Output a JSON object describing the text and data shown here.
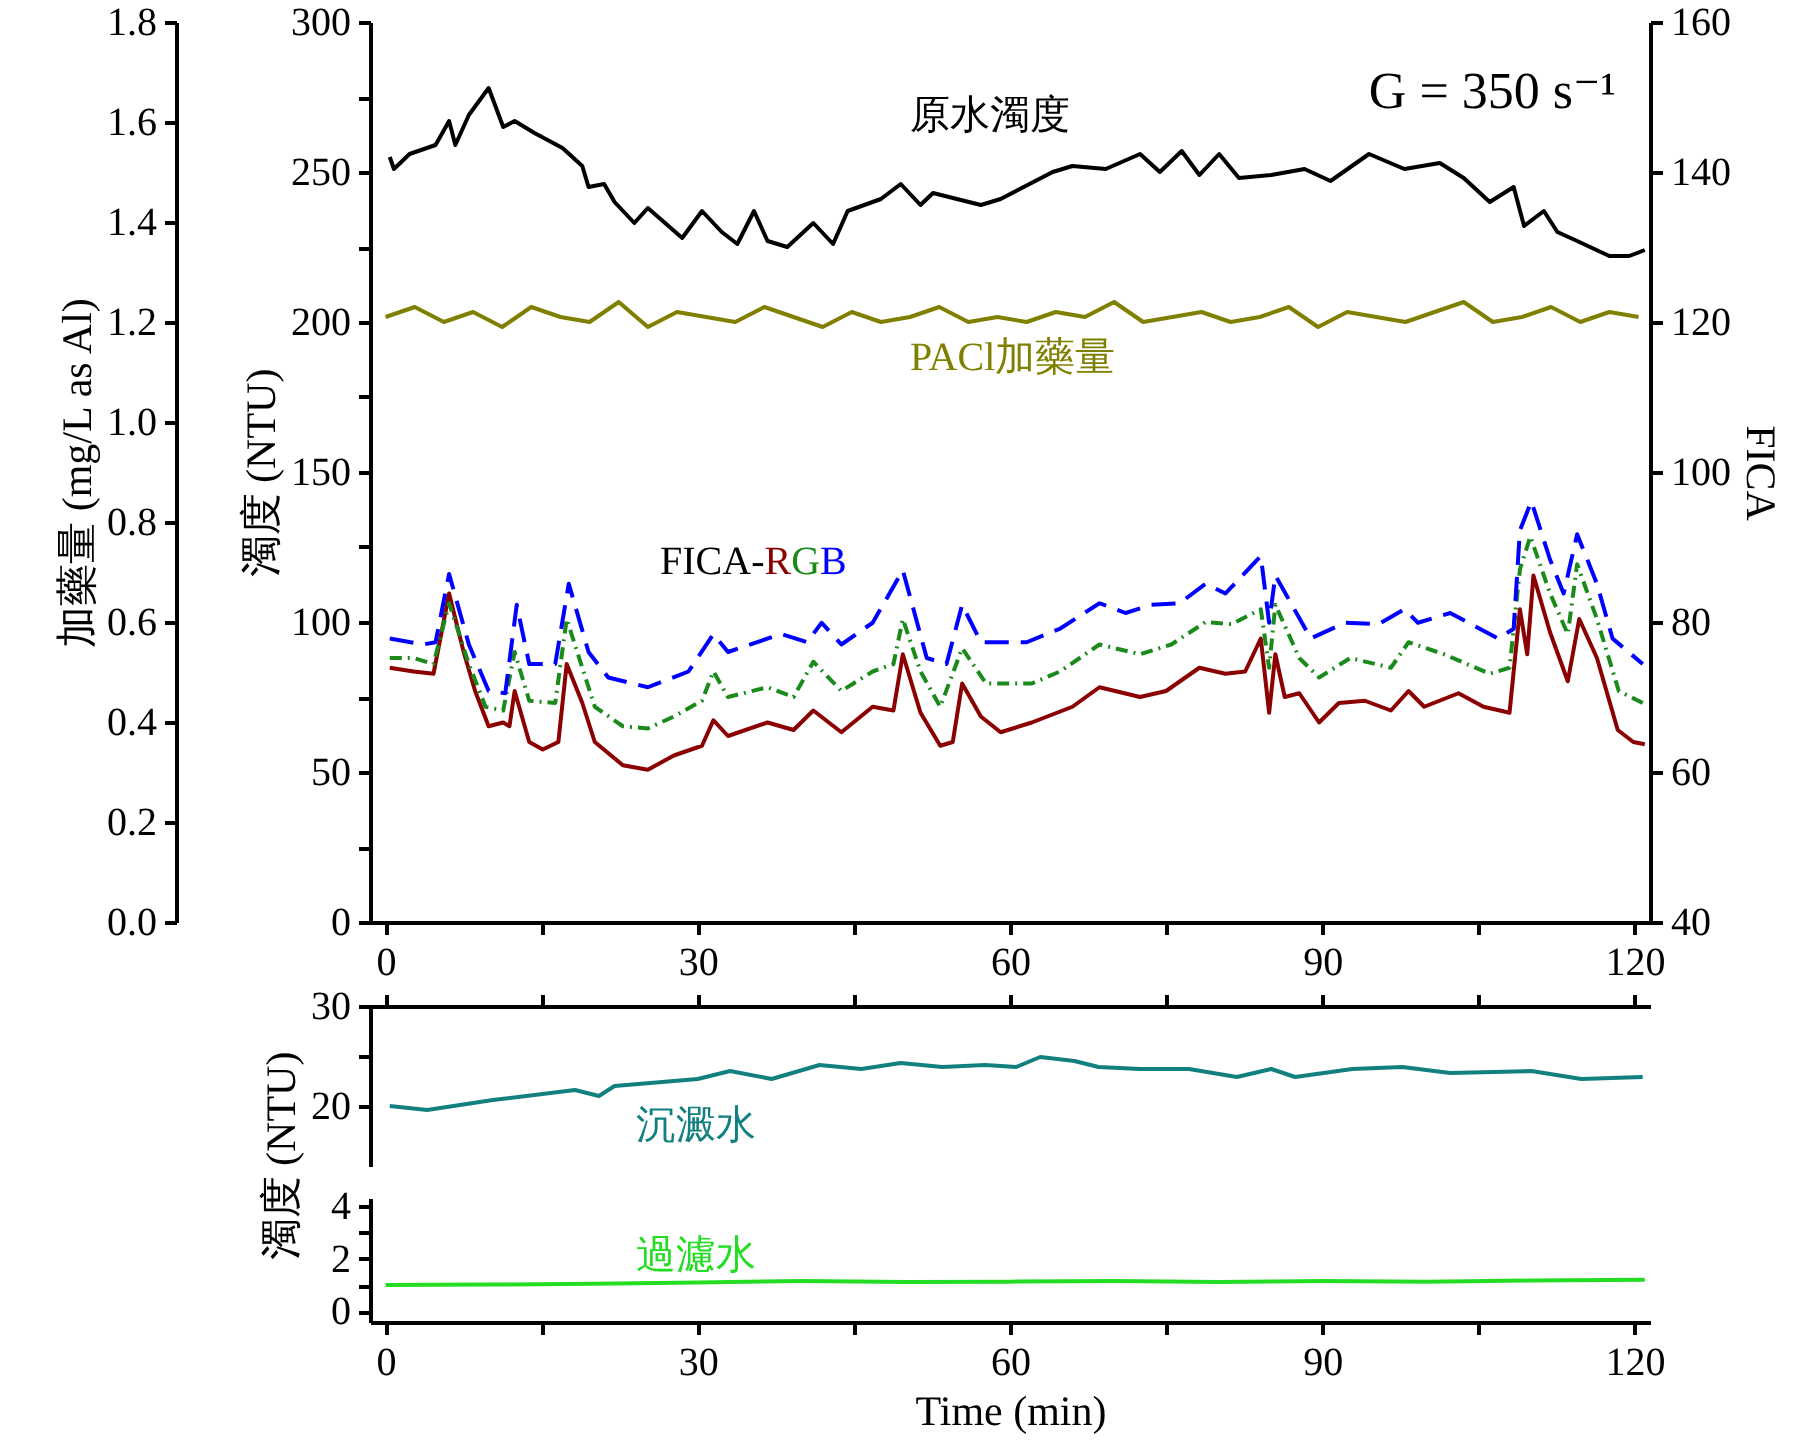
{
  "chart_data": [
    {
      "type": "line",
      "ylabel": "濁度 (NTU)",
      "y2label": "FICA",
      "y3label": "加藥量 (mg/L as Al)",
      "annotations": [
        "G = 350 s⁻¹",
        "FICA-"
      ],
      "xlim": [
        -1.5,
        121.5
      ],
      "xticks": [
        0,
        {
          "value": 15,
          "label": null
        },
        30,
        {
          "value": 45,
          "label": null
        },
        60,
        {
          "value": 75,
          "label": null
        },
        90,
        {
          "value": 105,
          "label": null
        },
        120
      ],
      "ylim": [
        0,
        300
      ],
      "yticks": [
        0,
        {
          "value": 25,
          "label": null
        },
        50,
        {
          "value": 75,
          "label": null
        },
        100,
        {
          "value": 125,
          "label": null
        },
        150,
        {
          "value": 175,
          "label": null
        },
        200,
        {
          "value": 225,
          "label": null
        },
        250,
        {
          "value": 275,
          "label": null
        },
        300
      ],
      "y2lim": [
        40,
        160
      ],
      "y2ticks": [
        40,
        60,
        80,
        100,
        120,
        140,
        160
      ],
      "y3lim": [
        0,
        1.8
      ],
      "y3ticks": [
        {
          "value": 0,
          "label": "0.0"
        },
        0.2,
        0.4,
        0.6,
        0.8,
        {
          "value": 1,
          "label": "1.0"
        },
        1.2,
        1.4,
        1.6,
        1.8
      ],
      "marker": "none",
      "series": [
        {
          "name": "原水濁度",
          "color": "#000000",
          "line_style": "solid",
          "x": [
            0.4,
            0.8,
            2.3,
            4.8,
            6.1,
            6.7,
            8,
            9.9,
            11.3,
            12.4,
            14.3,
            17,
            18.9,
            19.5,
            21,
            22,
            23.9,
            25.2,
            28.5,
            30.4,
            32.3,
            33.8,
            35.4,
            36.7,
            38.6,
            41.1,
            43,
            44.4,
            47.6,
            49.5,
            51.4,
            52.6,
            57.2,
            59.1,
            64.1,
            66,
            69.2,
            72.5,
            74.4,
            76.5,
            78.2,
            80.1,
            82,
            85.1,
            88.3,
            90.8,
            94.5,
            97.9,
            101.3,
            103.6,
            106.1,
            108.4,
            109.4,
            111.3,
            112.6,
            114.5,
            117.6,
            119.5,
            121
          ],
          "values": [
            255,
            251,
            256,
            259,
            267,
            259,
            269,
            278,
            265,
            267,
            263,
            258,
            252,
            245,
            246,
            240,
            233,
            238,
            228,
            237,
            230,
            226,
            237,
            227,
            225,
            233,
            226,
            237,
            241,
            246,
            239,
            243,
            239,
            241,
            250,
            252,
            251,
            256,
            250,
            257,
            249,
            256,
            248,
            249,
            251,
            247,
            256,
            251,
            253,
            248,
            240,
            245,
            232,
            237,
            230,
            227,
            222,
            222,
            224
          ]
        },
        {
          "name": "PACl加藥量",
          "color": "#808000",
          "axis": "y3",
          "line_style": "solid",
          "x": [
            0,
            2.8,
            5.6,
            8.4,
            11.2,
            14,
            16.8,
            19.6,
            22.4,
            25.2,
            28,
            30.8,
            33.6,
            36.4,
            39.2,
            42,
            44.8,
            47.6,
            50.4,
            53.2,
            56,
            58.8,
            61.6,
            64.4,
            67.2,
            70,
            72.8,
            75.6,
            78.4,
            81.2,
            84,
            86.8,
            89.6,
            92.4,
            95.2,
            98,
            100.8,
            103.6,
            106.4,
            109.2,
            112,
            114.8,
            117.6,
            120.4
          ],
          "values": [
            1.21,
            1.23,
            1.2,
            1.22,
            1.19,
            1.23,
            1.21,
            1.2,
            1.24,
            1.19,
            1.22,
            1.21,
            1.2,
            1.23,
            1.21,
            1.19,
            1.22,
            1.2,
            1.21,
            1.23,
            1.2,
            1.21,
            1.2,
            1.22,
            1.21,
            1.24,
            1.2,
            1.21,
            1.22,
            1.2,
            1.21,
            1.23,
            1.19,
            1.22,
            1.21,
            1.2,
            1.22,
            1.24,
            1.2,
            1.21,
            1.23,
            1.2,
            1.22,
            1.21
          ]
        },
        {
          "name": "R",
          "color": "#8b0000",
          "axis": "y2",
          "line_style": "solid",
          "x": [
            0.4,
            2.7,
            4.6,
            6.1,
            7.5,
            8.6,
            9.9,
            11.3,
            11.9,
            12.4,
            13.8,
            15.1,
            16.6,
            17.4,
            18.9,
            20.1,
            22.8,
            25.2,
            27.7,
            30.4,
            31.5,
            32.9,
            36.7,
            39.2,
            41.1,
            43.8,
            46.8,
            48.8,
            49.7,
            51.4,
            53.3,
            54.5,
            55.4,
            57.2,
            59.1,
            62.1,
            66,
            68.6,
            72.5,
            75,
            78.2,
            80.7,
            82.6,
            84.1,
            84.9,
            85.5,
            86.4,
            87.8,
            89.7,
            91.6,
            94.1,
            96.6,
            98.3,
            99.8,
            103.1,
            105.5,
            108,
            109,
            109.7,
            110.3,
            111.9,
            113.6,
            114.7,
            116.4,
            118.4,
            119.9,
            121
          ],
          "values": [
            73.9,
            73.4,
            73.1,
            83.8,
            76,
            70.8,
            66.1,
            66.6,
            66.1,
            70.8,
            64,
            63,
            64,
            74.4,
            69.2,
            64,
            60.9,
            60.3,
            62.2,
            63.5,
            66.9,
            64.8,
            66.6,
            65.6,
            68.2,
            65.3,
            68.7,
            68.2,
            75.7,
            67.9,
            63.5,
            64,
            71.8,
            67.4,
            65.3,
            66.6,
            68.7,
            71.3,
            70,
            70.8,
            73.9,
            73.1,
            73.4,
            77.8,
            67.9,
            75.7,
            70,
            70.5,
            66.6,
            69.2,
            69.5,
            68.2,
            70.8,
            68.7,
            70.5,
            68.7,
            67.9,
            81.7,
            75.7,
            86.2,
            78.6,
            72.1,
            80.4,
            75.2,
            65.6,
            64,
            63.7
          ]
        },
        {
          "name": "G",
          "color": "#1a8a1a",
          "axis": "y2",
          "line_style": "dotted",
          "x": [
            0.4,
            2.7,
            4.6,
            6.1,
            8,
            9.6,
            11.3,
            12.4,
            13.8,
            16.3,
            17.4,
            20.1,
            22.8,
            25.2,
            27.7,
            30.4,
            31.5,
            32.9,
            36.7,
            39.2,
            41.1,
            43.8,
            46.8,
            48.8,
            49.7,
            51.4,
            53.3,
            55.4,
            57.7,
            62.1,
            64.8,
            68.6,
            72.5,
            75.5,
            78.8,
            81.3,
            84.1,
            84.9,
            85.5,
            87.8,
            89.7,
            92.7,
            96.6,
            98.3,
            101.7,
            106.1,
            108,
            109,
            110,
            111.9,
            113.6,
            114.5,
            116.4,
            118.5,
            120.8
          ],
          "values": [
            75.2,
            75.2,
            74.4,
            82.5,
            74.4,
            68.7,
            68.2,
            76,
            69.5,
            69.2,
            80.4,
            68.7,
            66.1,
            65.8,
            67.4,
            69.5,
            73.4,
            70,
            71.3,
            70,
            74.7,
            70.8,
            73.4,
            74.4,
            80.4,
            73.4,
            68.7,
            76.5,
            71.8,
            71.8,
            73.4,
            77,
            75.7,
            77,
            80,
            79.7,
            81.7,
            73.9,
            82.3,
            75.2,
            72.6,
            75.2,
            73.9,
            77.3,
            75.7,
            73.1,
            73.9,
            87,
            91.4,
            83.8,
            78.4,
            87.7,
            80.4,
            70.8,
            69.2
          ]
        },
        {
          "name": "B",
          "color": "#0000ff",
          "axis": "y2",
          "line_style": "dashed",
          "x": [
            0.4,
            3.6,
            4.8,
            6.1,
            8,
            9.9,
            11.5,
            12.6,
            13.8,
            16.3,
            17.6,
            19.5,
            21.4,
            25.2,
            29.1,
            31.5,
            32.9,
            38,
            40.5,
            41.9,
            43.8,
            46.8,
            49.7,
            52,
            53.9,
            55.4,
            57.2,
            61.6,
            64.8,
            68.6,
            71.1,
            73.6,
            76.3,
            78.8,
            80.7,
            84.1,
            84.9,
            85.5,
            87,
            88.9,
            92.2,
            95.4,
            97.9,
            99.2,
            102.3,
            106.9,
            108.4,
            109,
            110.1,
            111.9,
            113.2,
            114.5,
            116.4,
            117.9,
            120.8
          ],
          "values": [
            77.8,
            77,
            77.3,
            86.4,
            77,
            70.8,
            70.5,
            82.3,
            74.4,
            74.4,
            85.1,
            76,
            72.6,
            71.3,
            73.4,
            78.4,
            76,
            78.4,
            77.3,
            79.9,
            77,
            79.9,
            86.9,
            75.2,
            74.4,
            82.3,
            77.3,
            77.3,
            79.1,
            82.5,
            81.2,
            82.3,
            82.5,
            85.1,
            83.8,
            88.8,
            79.9,
            86.2,
            82.5,
            77.8,
            79.9,
            79.7,
            81.7,
            79.9,
            81.2,
            77.8,
            79.1,
            92.2,
            96.1,
            88.3,
            83.8,
            91.7,
            85.1,
            77.8,
            74.4
          ]
        }
      ]
    },
    {
      "type": "line",
      "ylabel": "濁度 (NTU)",
      "tick_labels": "y",
      "marker": "none",
      "xlim": [
        -1.5,
        121.5
      ],
      "xticks": [
        0,
        {
          "value": 15,
          "label": null
        },
        30,
        {
          "value": 45,
          "label": null
        },
        60,
        {
          "value": 75,
          "label": null
        },
        90,
        {
          "value": 105,
          "label": null
        },
        120
      ],
      "ylim": [
        14,
        30
      ],
      "yticks": [
        20,
        {
          "value": 25,
          "label": null
        },
        30
      ],
      "series": [
        {
          "name": "沉澱水",
          "color": "#138080",
          "line_style": "solid",
          "x": [
            0.4,
            4,
            10.3,
            18.2,
            20.5,
            22,
            30,
            33.1,
            37.1,
            41.7,
            45.7,
            49.5,
            53.5,
            57.6,
            60.6,
            62.9,
            66.2,
            68.5,
            72.5,
            77.2,
            81.8,
            85.1,
            87.4,
            92.9,
            97.7,
            102.3,
            110.1,
            114.9,
            120.8
          ],
          "values": [
            20,
            19.6,
            20.6,
            21.6,
            21,
            22,
            22.7,
            23.5,
            22.7,
            24.1,
            23.7,
            24.3,
            23.9,
            24.1,
            23.9,
            24.9,
            24.5,
            23.9,
            23.7,
            23.7,
            22.9,
            23.7,
            22.9,
            23.7,
            23.9,
            23.3,
            23.5,
            22.7,
            22.9
          ]
        }
      ]
    },
    {
      "type": "line",
      "xlabel": "Time (min)",
      "marker": "none",
      "xlim": [
        -1.5,
        121.5
      ],
      "xticks": [
        0,
        {
          "value": 15,
          "label": null
        },
        30,
        {
          "value": 45,
          "label": null
        },
        60,
        {
          "value": 75,
          "label": null
        },
        90,
        {
          "value": 105,
          "label": null
        },
        120
      ],
      "ylim": [
        -0.4,
        4.3
      ],
      "yticks": [
        0,
        {
          "value": 1,
          "label": null
        },
        2,
        {
          "value": 3,
          "label": null
        },
        4
      ],
      "series": [
        {
          "name": "過濾水",
          "color": "#22dd22",
          "line_style": "solid",
          "x": [
            0,
            10,
            20,
            30,
            40,
            50,
            60,
            70,
            80,
            90,
            100,
            110,
            121
          ],
          "values": [
            1,
            1.02,
            1.05,
            1.1,
            1.15,
            1.12,
            1.13,
            1.15,
            1.12,
            1.15,
            1.13,
            1.17,
            1.2
          ]
        }
      ]
    }
  ]
}
